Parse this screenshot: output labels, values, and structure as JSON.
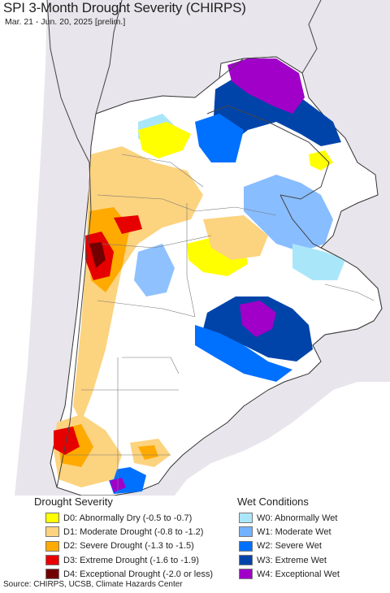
{
  "title": "SPI 3-Month Drought Severity (CHIRPS)",
  "subtitle": "Mar. 21 - Jun. 20, 2025 [prelim.]",
  "colors": {
    "background_land": "#ffffff",
    "outside_region": "#e8e5ec",
    "ocean": "#ffffff",
    "border": "#444444",
    "D0": "#ffff00",
    "D1": "#fcd37f",
    "D2": "#ffaa00",
    "D3": "#e60000",
    "D4": "#730000",
    "W0": "#aae6fa",
    "W1": "#73b2ff",
    "W2": "#0070ff",
    "W3": "#0044aa",
    "W4": "#a000c8"
  },
  "legend": {
    "drought": {
      "heading": "Drought Severity",
      "items": [
        {
          "label": "D0: Abnormally Dry (-0.5 to -0.7)",
          "color": "#ffff00"
        },
        {
          "label": "D1: Moderate Drought (-0.8 to -1.2)",
          "color": "#fcd37f"
        },
        {
          "label": "D2: Severe Drought (-1.3 to -1.5)",
          "color": "#ffaa00"
        },
        {
          "label": "D3: Extreme Drought (-1.6 to -1.9)",
          "color": "#e60000"
        },
        {
          "label": "D4: Exceptional Drought (-2.0 or less)",
          "color": "#730000"
        }
      ]
    },
    "wet": {
      "heading": "Wet Conditions",
      "items": [
        {
          "label": "W0: Abnormally Wet",
          "color": "#aae6fa"
        },
        {
          "label": "W1: Moderate Wet",
          "color": "#73b2ff"
        },
        {
          "label": "W2: Severe Wet",
          "color": "#0070ff"
        },
        {
          "label": "W3: Extreme Wet",
          "color": "#0044aa"
        },
        {
          "label": "W4: Exceptional Wet",
          "color": "#a000c8"
        }
      ]
    }
  },
  "source": "Source: CHIRPS, UCSB, Climate Hazards Center"
}
